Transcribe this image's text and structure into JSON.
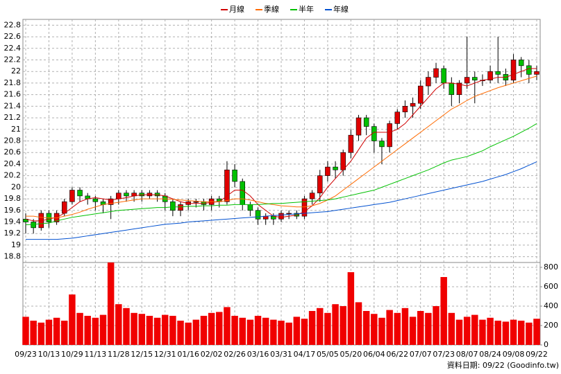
{
  "chart_data": {
    "type": "candlestick",
    "categories": [
      "09/23",
      null,
      null,
      "10/13",
      null,
      null,
      "10/29",
      null,
      null,
      "11/13",
      null,
      null,
      "11/28",
      null,
      null,
      "12/15",
      null,
      null,
      "12/31",
      null,
      null,
      "01/16",
      null,
      null,
      "02/02",
      null,
      null,
      "02/26",
      null,
      null,
      "03/16",
      null,
      null,
      "03/31",
      null,
      null,
      "04/17",
      null,
      null,
      "05/05",
      null,
      null,
      "05/20",
      null,
      null,
      "06/04",
      null,
      null,
      "06/22",
      null,
      null,
      "07/07",
      null,
      null,
      "07/23",
      null,
      null,
      "08/07",
      null,
      null,
      "08/24",
      null,
      null,
      "09/08",
      null,
      null,
      "09/22"
    ],
    "open": [
      19.45,
      19.4,
      19.3,
      19.55,
      19.4,
      19.55,
      19.75,
      19.95,
      19.85,
      19.8,
      19.75,
      19.7,
      19.8,
      19.9,
      19.85,
      19.9,
      19.85,
      19.9,
      19.85,
      19.75,
      19.6,
      19.7,
      19.75,
      19.75,
      19.7,
      19.8,
      19.75,
      20.3,
      20.1,
      19.7,
      19.6,
      19.45,
      19.5,
      19.45,
      19.55,
      19.55,
      19.5,
      19.8,
      19.9,
      20.2,
      20.35,
      20.3,
      20.6,
      20.9,
      21.2,
      21.05,
      20.8,
      20.7,
      21.1,
      21.3,
      21.4,
      21.45,
      21.75,
      21.9,
      22.05,
      21.8,
      21.6,
      21.8,
      21.9,
      21.85,
      21.85,
      22.0,
      21.95,
      21.85,
      22.2,
      22.1,
      21.95
    ],
    "high": [
      19.55,
      19.45,
      19.6,
      19.6,
      19.6,
      19.8,
      20.0,
      20.0,
      19.9,
      19.85,
      19.8,
      19.85,
      19.95,
      19.95,
      19.95,
      19.95,
      19.95,
      19.95,
      19.9,
      19.8,
      19.75,
      19.8,
      19.8,
      19.8,
      19.85,
      19.85,
      20.45,
      20.4,
      20.15,
      19.75,
      19.65,
      19.55,
      19.55,
      19.6,
      19.6,
      19.6,
      19.85,
      19.95,
      20.3,
      20.45,
      20.45,
      20.65,
      21.0,
      21.25,
      21.25,
      21.1,
      20.85,
      21.15,
      21.35,
      21.5,
      21.55,
      21.85,
      22.0,
      22.15,
      22.1,
      21.9,
      21.85,
      22.6,
      22.0,
      21.95,
      22.1,
      22.6,
      22.05,
      22.3,
      22.25,
      22.2,
      22.1
    ],
    "low": [
      19.2,
      19.2,
      19.25,
      19.3,
      19.35,
      19.5,
      19.7,
      19.75,
      19.7,
      19.6,
      19.55,
      19.45,
      19.7,
      19.75,
      19.75,
      19.75,
      19.8,
      19.75,
      19.6,
      19.5,
      19.5,
      19.6,
      19.65,
      19.6,
      19.6,
      19.65,
      19.7,
      20.0,
      19.6,
      19.5,
      19.35,
      19.35,
      19.35,
      19.4,
      19.45,
      19.45,
      19.45,
      19.7,
      19.75,
      20.1,
      20.15,
      20.2,
      20.5,
      20.8,
      20.9,
      20.6,
      20.4,
      20.6,
      21.0,
      21.2,
      21.2,
      21.35,
      21.6,
      21.8,
      21.7,
      21.4,
      21.45,
      21.7,
      21.45,
      21.75,
      21.8,
      21.8,
      21.75,
      21.8,
      21.9,
      21.8,
      21.85
    ],
    "close": [
      19.4,
      19.3,
      19.55,
      19.4,
      19.55,
      19.75,
      19.95,
      19.85,
      19.8,
      19.75,
      19.7,
      19.8,
      19.9,
      19.85,
      19.9,
      19.85,
      19.9,
      19.85,
      19.75,
      19.6,
      19.7,
      19.75,
      19.75,
      19.7,
      19.8,
      19.75,
      20.3,
      20.1,
      19.7,
      19.6,
      19.45,
      19.5,
      19.45,
      19.55,
      19.55,
      19.5,
      19.8,
      19.9,
      20.2,
      20.35,
      20.3,
      20.6,
      20.9,
      21.2,
      21.05,
      20.8,
      20.7,
      21.1,
      21.3,
      21.4,
      21.45,
      21.75,
      21.9,
      22.05,
      21.8,
      21.6,
      21.8,
      21.9,
      21.85,
      21.85,
      22.0,
      21.95,
      21.85,
      22.2,
      22.1,
      21.95,
      22.0
    ],
    "up_color": "#e00000",
    "down_color": "#00c000",
    "series": [
      {
        "name": "月線",
        "color": "#d00000",
        "values": [
          19.45,
          19.42,
          19.42,
          19.45,
          19.48,
          19.55,
          19.65,
          19.75,
          19.8,
          19.82,
          19.8,
          19.78,
          19.8,
          19.82,
          19.85,
          19.87,
          19.87,
          19.87,
          19.85,
          19.8,
          19.75,
          19.72,
          19.72,
          19.72,
          19.74,
          19.75,
          19.85,
          19.95,
          19.95,
          19.85,
          19.7,
          19.6,
          19.5,
          19.48,
          19.5,
          19.52,
          19.58,
          19.68,
          19.82,
          20.0,
          20.15,
          20.3,
          20.45,
          20.65,
          20.85,
          20.95,
          20.95,
          20.95,
          21.0,
          21.1,
          21.25,
          21.4,
          21.55,
          21.7,
          21.8,
          21.8,
          21.78,
          21.75,
          21.8,
          21.85,
          21.87,
          21.9,
          21.9,
          21.95,
          22.0,
          22.05,
          22.05
        ]
      },
      {
        "name": "季線",
        "color": "#ff6a00",
        "values": [
          19.5,
          19.5,
          19.48,
          19.47,
          19.47,
          19.5,
          19.53,
          19.57,
          19.62,
          19.66,
          19.7,
          19.72,
          19.74,
          19.76,
          19.78,
          19.8,
          19.8,
          19.8,
          19.8,
          19.79,
          19.78,
          19.77,
          19.76,
          19.75,
          19.75,
          19.75,
          19.77,
          19.8,
          19.8,
          19.78,
          19.75,
          19.72,
          19.7,
          19.68,
          19.67,
          19.66,
          19.66,
          19.68,
          19.72,
          19.78,
          19.85,
          19.95,
          20.05,
          20.15,
          20.25,
          20.35,
          20.45,
          20.55,
          20.65,
          20.75,
          20.85,
          20.95,
          21.05,
          21.15,
          21.25,
          21.35,
          21.42,
          21.5,
          21.57,
          21.62,
          21.67,
          21.72,
          21.76,
          21.8,
          21.84,
          21.88,
          21.92
        ]
      },
      {
        "name": "半年",
        "color": "#00c000",
        "values": [
          19.35,
          19.36,
          19.37,
          19.38,
          19.42,
          19.45,
          19.48,
          19.5,
          19.52,
          19.54,
          19.56,
          19.58,
          19.6,
          19.61,
          19.62,
          19.63,
          19.64,
          19.65,
          19.65,
          19.66,
          19.66,
          19.67,
          19.67,
          19.68,
          19.68,
          19.69,
          19.69,
          19.7,
          19.7,
          19.7,
          19.7,
          19.71,
          19.72,
          19.72,
          19.73,
          19.74,
          19.75,
          19.76,
          19.77,
          19.78,
          19.8,
          19.83,
          19.86,
          19.89,
          19.92,
          19.95,
          20.0,
          20.05,
          20.1,
          20.15,
          20.2,
          20.25,
          20.3,
          20.36,
          20.42,
          20.47,
          20.5,
          20.53,
          20.58,
          20.63,
          20.7,
          20.76,
          20.82,
          20.88,
          20.95,
          21.02,
          21.1
        ]
      },
      {
        "name": "年線",
        "color": "#0050d0",
        "values": [
          19.1,
          19.1,
          19.1,
          19.1,
          19.1,
          19.11,
          19.12,
          19.14,
          19.16,
          19.18,
          19.2,
          19.22,
          19.24,
          19.26,
          19.28,
          19.3,
          19.32,
          19.34,
          19.36,
          19.37,
          19.38,
          19.4,
          19.41,
          19.42,
          19.43,
          19.44,
          19.45,
          19.46,
          19.47,
          19.48,
          19.49,
          19.5,
          19.51,
          19.52,
          19.53,
          19.54,
          19.55,
          19.56,
          19.57,
          19.58,
          19.6,
          19.62,
          19.64,
          19.66,
          19.68,
          19.7,
          19.72,
          19.74,
          19.77,
          19.8,
          19.83,
          19.86,
          19.89,
          19.92,
          19.95,
          19.98,
          20.01,
          20.04,
          20.07,
          20.1,
          20.14,
          20.18,
          20.22,
          20.27,
          20.32,
          20.38,
          20.44
        ]
      }
    ],
    "ylim": [
      18.7,
      22.9
    ],
    "yticks": [
      18.8,
      19,
      19.2,
      19.4,
      19.6,
      19.8,
      20,
      20.2,
      20.4,
      20.6,
      20.8,
      21,
      21.2,
      21.4,
      21.6,
      21.8,
      22,
      22.2,
      22.4,
      22.6,
      22.8
    ],
    "volume": {
      "color": "#f00000",
      "values": [
        290,
        250,
        230,
        260,
        280,
        250,
        520,
        330,
        300,
        280,
        310,
        850,
        420,
        380,
        330,
        320,
        300,
        280,
        310,
        300,
        250,
        230,
        260,
        300,
        330,
        340,
        390,
        300,
        280,
        260,
        300,
        280,
        260,
        250,
        230,
        290,
        270,
        350,
        380,
        330,
        420,
        400,
        750,
        440,
        350,
        320,
        280,
        360,
        330,
        380,
        290,
        350,
        330,
        400,
        700,
        330,
        260,
        290,
        310,
        260,
        280,
        250,
        240,
        260,
        250,
        230,
        270
      ]
    },
    "y2lim": [
      0,
      850
    ],
    "y2ticks": [
      0,
      200,
      400,
      600,
      800
    ],
    "grid": true,
    "footnote": "資料日期: 09/22 (Goodinfo.tw)"
  }
}
